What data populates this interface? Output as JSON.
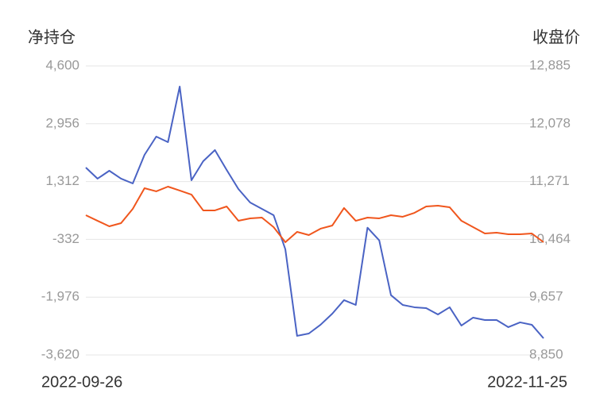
{
  "chart_data": {
    "type": "line",
    "y_label": "净持仓",
    "y2_label": "收盘价",
    "categories": [
      "2022-09-26",
      null,
      null,
      null,
      null,
      null,
      null,
      null,
      null,
      null,
      null,
      null,
      null,
      null,
      null,
      null,
      null,
      null,
      null,
      null,
      null,
      null,
      null,
      null,
      null,
      null,
      null,
      null,
      null,
      null,
      null,
      null,
      null,
      null,
      null,
      null,
      null,
      null,
      null,
      "2022-11-25"
    ],
    "series": [
      {
        "color": "#4a63c4",
        "values": [
          1710,
          1394,
          1619,
          1394,
          1258,
          2071,
          2590,
          2432,
          4013,
          1348,
          1890,
          2207,
          1642,
          1100,
          716,
          536,
          355,
          -616,
          -3077,
          -3010,
          -2761,
          -2445,
          -2061,
          -2197,
          0,
          -361,
          -1919,
          -2197,
          -2264,
          -2287,
          -2468,
          -2264,
          -2784,
          -2558,
          -2626,
          -2626,
          -2829,
          -2693,
          -2761,
          -3145
        ]
      },
      {
        "color": "#f0561d",
        "axis": "y2",
        "values": [
          10801,
          10723,
          10646,
          10690,
          10890,
          11178,
          11134,
          11200,
          11145,
          11089,
          10868,
          10868,
          10923,
          10723,
          10757,
          10768,
          10635,
          10424,
          10568,
          10524,
          10613,
          10657,
          10901,
          10723,
          10768,
          10757,
          10801,
          10779,
          10834,
          10923,
          10934,
          10912,
          10723,
          10635,
          10546,
          10557,
          10535,
          10535,
          10546,
          10424
        ]
      }
    ],
    "ylim": [
      -3620,
      4600
    ],
    "yticks": [
      {
        "value": -3620,
        "label": "-3,620"
      },
      {
        "value": -1976,
        "label": "-1,976"
      },
      -332,
      {
        "value": 1312,
        "label": "1,312"
      },
      {
        "value": 2956,
        "label": "2,956"
      },
      {
        "value": 4600,
        "label": "4,600"
      }
    ],
    "y2lim": [
      8850,
      12885
    ],
    "y2ticks": [
      {
        "value": 8850,
        "label": "8,850"
      },
      {
        "value": 9657,
        "label": "9,657"
      },
      {
        "value": 10464,
        "label": "10,464"
      },
      {
        "value": 11271,
        "label": "11,271"
      },
      {
        "value": 12078,
        "label": "12,078"
      },
      {
        "value": 12885,
        "label": "12,885"
      }
    ],
    "grid": true
  }
}
